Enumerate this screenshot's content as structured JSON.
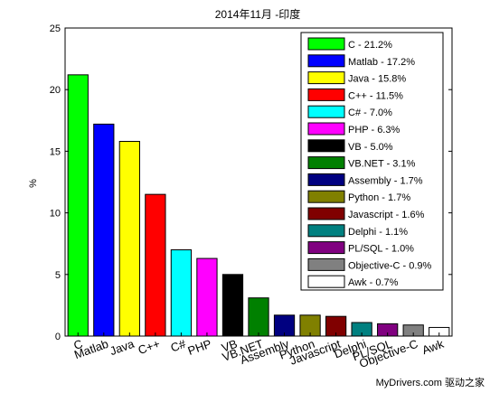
{
  "chart_data": {
    "type": "bar",
    "title": "2014年11月 -印度",
    "ylabel": "%",
    "xlabel": "",
    "ylim": [
      0,
      25
    ],
    "yticks": [
      0,
      5,
      10,
      15,
      20,
      25
    ],
    "legend_position": "top-right",
    "grid": false,
    "categories": [
      "C",
      "Matlab",
      "Java",
      "C++",
      "C#",
      "PHP",
      "VB",
      "VB.NET",
      "Assembly",
      "Python",
      "Javascript",
      "Delphi",
      "PL/SQL",
      "Objective-C",
      "Awk"
    ],
    "values": [
      21.2,
      17.2,
      15.8,
      11.5,
      7.0,
      6.3,
      5.0,
      3.1,
      1.7,
      1.7,
      1.6,
      1.1,
      1.0,
      0.9,
      0.7
    ],
    "colors": [
      "#00ff00",
      "#0000ff",
      "#ffff00",
      "#ff0000",
      "#00ffff",
      "#ff00ff",
      "#000000",
      "#008000",
      "#000080",
      "#808000",
      "#800000",
      "#008080",
      "#800080",
      "#808080",
      "#ffffff"
    ],
    "legend_labels": [
      "C - 21.2%",
      "Matlab - 17.2%",
      "Java - 15.8%",
      "C++ - 11.5%",
      "C# - 7.0%",
      "PHP - 6.3%",
      "VB - 5.0%",
      "VB.NET - 3.1%",
      "Assembly - 1.7%",
      "Python - 1.7%",
      "Javascript - 1.6%",
      "Delphi - 1.1%",
      "PL/SQL - 1.0%",
      "Objective-C - 0.9%",
      "Awk - 0.7%"
    ]
  },
  "watermark": "MyDrivers.com 驱动之家"
}
